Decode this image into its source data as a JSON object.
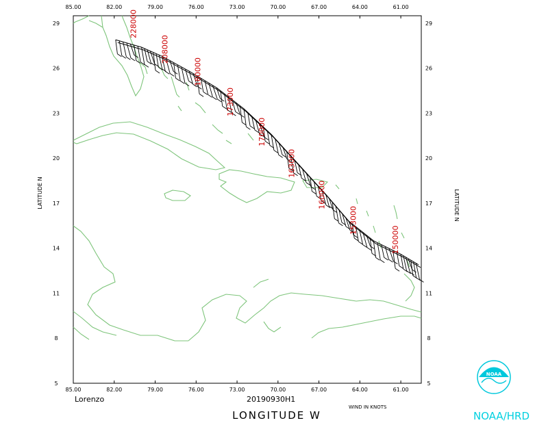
{
  "map": {
    "storm_name": "Lorenzo",
    "timestamp": "20190930H1",
    "x_axis_title": "LONGITUDE  W",
    "y_axis_title": "LATITUDE  N",
    "wind_units": "WIND IN KNOTS",
    "agency": "NOAA/HRD",
    "logo_text": "NOAA",
    "lon_ticks": [
      "85.00",
      "82.00",
      "79.00",
      "76.00",
      "73.00",
      "70.00",
      "67.00",
      "64.00",
      "61.00"
    ],
    "lat_ticks": [
      "29",
      "26",
      "23",
      "20",
      "17",
      "14",
      "11",
      "8",
      "5"
    ],
    "lon_range": [
      85,
      59.5
    ],
    "lat_range": [
      5,
      29.5
    ],
    "altitude_labels": [
      {
        "text": "228000",
        "lon": 80.4,
        "lat": 28.0
      },
      {
        "text": "208000",
        "lon": 78.1,
        "lat": 26.3
      },
      {
        "text": "180000",
        "lon": 75.7,
        "lat": 24.8
      },
      {
        "text": "173000",
        "lon": 73.3,
        "lat": 22.8
      },
      {
        "text": "170000",
        "lon": 71.0,
        "lat": 20.8
      },
      {
        "text": "163000",
        "lon": 68.8,
        "lat": 18.7
      },
      {
        "text": "160000",
        "lon": 66.6,
        "lat": 16.6
      },
      {
        "text": "153000",
        "lon": 64.3,
        "lat": 14.9
      },
      {
        "text": "150000",
        "lon": 61.2,
        "lat": 13.6
      }
    ],
    "track": [
      {
        "lon": 81.9,
        "lat": 27.9
      },
      {
        "lon": 80.0,
        "lat": 27.4
      },
      {
        "lon": 78.5,
        "lat": 26.8
      },
      {
        "lon": 76.5,
        "lat": 25.8
      },
      {
        "lon": 74.5,
        "lat": 24.7
      },
      {
        "lon": 72.5,
        "lat": 23.3
      },
      {
        "lon": 70.5,
        "lat": 21.6
      },
      {
        "lon": 68.5,
        "lat": 19.6
      },
      {
        "lon": 66.5,
        "lat": 17.6
      },
      {
        "lon": 64.8,
        "lat": 15.8
      },
      {
        "lon": 63.0,
        "lat": 14.5
      },
      {
        "lon": 61.0,
        "lat": 13.6
      },
      {
        "lon": 59.7,
        "lat": 12.9
      }
    ]
  }
}
